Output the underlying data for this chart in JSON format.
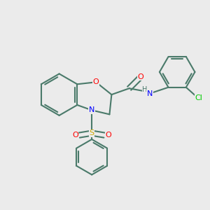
{
  "background_color": "#ebebeb",
  "bond_color": "#4a7a6a",
  "bond_width": 1.5,
  "atom_colors": {
    "O": "#ff0000",
    "N": "#0000ff",
    "S": "#ccaa00",
    "Cl": "#00cc00",
    "C": "#4a7a6a",
    "H": "#4a7a6a"
  },
  "font_size": 8,
  "font_size_small": 7
}
